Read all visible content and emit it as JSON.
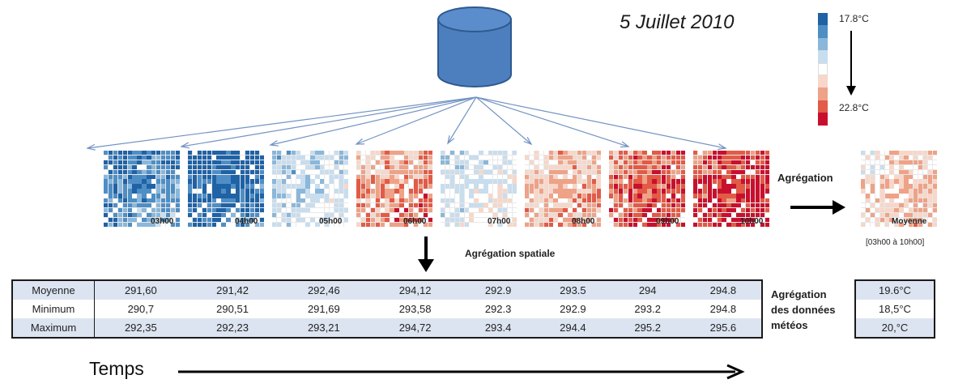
{
  "title": "5 Juillet 2010",
  "legend": {
    "max_label": "17.8°C",
    "min_label": "22.8°C",
    "colors": [
      "#1f62a6",
      "#4f8ec4",
      "#8ab7da",
      "#c8ddee",
      "#ffffff",
      "#f6d7c9",
      "#eea287",
      "#e25b47",
      "#c8102e"
    ]
  },
  "maps": [
    {
      "time": "03h00",
      "level": 1
    },
    {
      "time": "04h00",
      "level": 0
    },
    {
      "time": "05h00",
      "level": 3
    },
    {
      "time": "06h00",
      "level": 6
    },
    {
      "time": "07h00",
      "level": 3.5
    },
    {
      "time": "08h00",
      "level": 5.5
    },
    {
      "time": "09h00",
      "level": 7
    },
    {
      "time": "10h00",
      "level": 7.5
    }
  ],
  "mean_map": {
    "label": "Moyenne",
    "range": "[03h00 à 10h00]",
    "level": 5
  },
  "aggregation_label": "Agrégation",
  "spatial_label": "Agrégation spatiale",
  "weather_label": [
    "Agrégation",
    "des données",
    "météos"
  ],
  "table": {
    "rows": [
      {
        "label": "Moyenne",
        "values": [
          "291,60",
          "291,42",
          "292,46",
          "294,12",
          "292.9",
          "293.5",
          "294",
          "294.8"
        ]
      },
      {
        "label": "Minimum",
        "values": [
          "290,7",
          "290,51",
          "291,69",
          "293,58",
          "292.3",
          "292.9",
          "293.2",
          "294.8"
        ]
      },
      {
        "label": "Maximum",
        "values": [
          "292,35",
          "292,23",
          "293,21",
          "294,72",
          "293.4",
          "294.4",
          "295.2",
          "295.6"
        ]
      }
    ]
  },
  "summary": [
    "19.6°C",
    "18,5°C",
    "20,°C"
  ],
  "time_axis_label": "Temps",
  "icons": [
    "database-icon",
    "arrow-icon"
  ]
}
